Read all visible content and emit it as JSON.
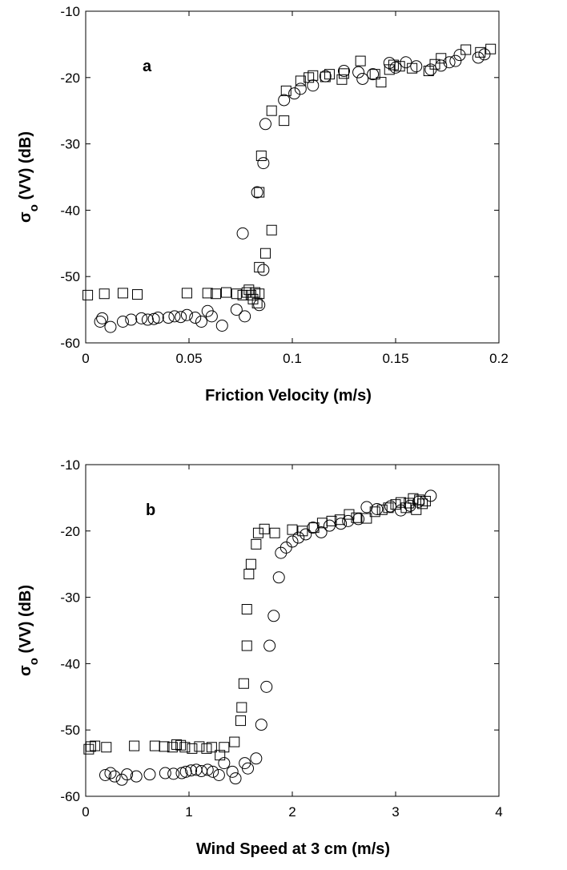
{
  "chart_data": [
    {
      "type": "scatter",
      "panel_label": "a",
      "xlabel": "Friction Velocity (m/s)",
      "ylabel": {
        "main": "σ",
        "sub": "o",
        "rest": " (VV)  (dB)"
      },
      "xlim": [
        0,
        0.2
      ],
      "ylim": [
        -60,
        -10
      ],
      "xticks": [
        "0",
        "0.05",
        "0.1",
        "0.15",
        "0.2"
      ],
      "yticks": [
        "-60",
        "-50",
        "-40",
        "-30",
        "-20",
        "-10"
      ],
      "grid": false,
      "series": [
        {
          "marker": "square",
          "points": [
            [
              0.001,
              -52.8
            ],
            [
              0.009,
              -52.6
            ],
            [
              0.018,
              -52.5
            ],
            [
              0.025,
              -52.7
            ],
            [
              0.049,
              -52.5
            ],
            [
              0.059,
              -52.5
            ],
            [
              0.063,
              -52.6
            ],
            [
              0.068,
              -52.4
            ],
            [
              0.073,
              -52.6
            ],
            [
              0.076,
              -52.8
            ],
            [
              0.078,
              -52.4
            ],
            [
              0.079,
              -52.0
            ],
            [
              0.08,
              -52.8
            ],
            [
              0.081,
              -53.4
            ],
            [
              0.082,
              -52.4
            ],
            [
              0.083,
              -54.0
            ],
            [
              0.084,
              -52.6
            ],
            [
              0.084,
              -48.6
            ],
            [
              0.084,
              -37.3
            ],
            [
              0.085,
              -31.8
            ],
            [
              0.087,
              -46.5
            ],
            [
              0.09,
              -43.0
            ],
            [
              0.09,
              -25.0
            ],
            [
              0.096,
              -26.5
            ],
            [
              0.097,
              -22.0
            ],
            [
              0.104,
              -20.5
            ],
            [
              0.108,
              -20.0
            ],
            [
              0.11,
              -19.7
            ],
            [
              0.116,
              -19.9
            ],
            [
              0.118,
              -19.5
            ],
            [
              0.124,
              -20.3
            ],
            [
              0.125,
              -19.4
            ],
            [
              0.133,
              -17.5
            ],
            [
              0.14,
              -19.5
            ],
            [
              0.143,
              -20.7
            ],
            [
              0.147,
              -18.8
            ],
            [
              0.149,
              -18.1
            ],
            [
              0.152,
              -18.3
            ],
            [
              0.158,
              -18.6
            ],
            [
              0.166,
              -19.0
            ],
            [
              0.169,
              -18.0
            ],
            [
              0.172,
              -17.1
            ],
            [
              0.184,
              -15.8
            ],
            [
              0.191,
              -16.2
            ],
            [
              0.196,
              -15.7
            ]
          ]
        },
        {
          "marker": "circle",
          "points": [
            [
              0.007,
              -56.8
            ],
            [
              0.008,
              -56.3
            ],
            [
              0.012,
              -57.6
            ],
            [
              0.018,
              -56.8
            ],
            [
              0.022,
              -56.5
            ],
            [
              0.027,
              -56.3
            ],
            [
              0.03,
              -56.5
            ],
            [
              0.033,
              -56.4
            ],
            [
              0.035,
              -56.2
            ],
            [
              0.04,
              -56.2
            ],
            [
              0.043,
              -56.0
            ],
            [
              0.046,
              -56.1
            ],
            [
              0.049,
              -55.8
            ],
            [
              0.053,
              -56.2
            ],
            [
              0.056,
              -56.8
            ],
            [
              0.059,
              -55.2
            ],
            [
              0.061,
              -56.0
            ],
            [
              0.066,
              -57.4
            ],
            [
              0.073,
              -55.0
            ],
            [
              0.077,
              -56.0
            ],
            [
              0.076,
              -43.5
            ],
            [
              0.084,
              -54.3
            ],
            [
              0.083,
              -37.3
            ],
            [
              0.086,
              -49.0
            ],
            [
              0.086,
              -32.9
            ],
            [
              0.087,
              -27.0
            ],
            [
              0.096,
              -23.4
            ],
            [
              0.101,
              -22.4
            ],
            [
              0.104,
              -21.7
            ],
            [
              0.11,
              -21.2
            ],
            [
              0.116,
              -19.8
            ],
            [
              0.125,
              -19.0
            ],
            [
              0.132,
              -19.2
            ],
            [
              0.134,
              -20.2
            ],
            [
              0.139,
              -19.5
            ],
            [
              0.147,
              -17.8
            ],
            [
              0.15,
              -18.5
            ],
            [
              0.155,
              -17.7
            ],
            [
              0.16,
              -18.3
            ],
            [
              0.167,
              -18.8
            ],
            [
              0.172,
              -18.2
            ],
            [
              0.176,
              -17.7
            ],
            [
              0.179,
              -17.5
            ],
            [
              0.181,
              -16.6
            ],
            [
              0.19,
              -17.0
            ],
            [
              0.193,
              -16.5
            ]
          ]
        }
      ]
    },
    {
      "type": "scatter",
      "panel_label": "b",
      "xlabel": "Wind Speed at 3 cm (m/s)",
      "ylabel": {
        "main": "σ",
        "sub": "o",
        "rest": " (VV)  (dB)"
      },
      "xlim": [
        0,
        4
      ],
      "ylim": [
        -60,
        -10
      ],
      "xticks": [
        "0",
        "1",
        "2",
        "3",
        "4"
      ],
      "yticks": [
        "-60",
        "-50",
        "-40",
        "-30",
        "-20",
        "-10"
      ],
      "grid": false,
      "series": [
        {
          "marker": "square",
          "points": [
            [
              0.03,
              -52.9
            ],
            [
              0.05,
              -52.5
            ],
            [
              0.09,
              -52.4
            ],
            [
              0.2,
              -52.6
            ],
            [
              0.47,
              -52.4
            ],
            [
              0.67,
              -52.4
            ],
            [
              0.76,
              -52.5
            ],
            [
              0.84,
              -52.6
            ],
            [
              0.88,
              -52.2
            ],
            [
              0.92,
              -52.3
            ],
            [
              0.96,
              -52.6
            ],
            [
              1.03,
              -52.8
            ],
            [
              1.1,
              -52.5
            ],
            [
              1.17,
              -52.8
            ],
            [
              1.22,
              -52.6
            ],
            [
              1.3,
              -53.8
            ],
            [
              1.34,
              -52.6
            ],
            [
              1.44,
              -51.8
            ],
            [
              1.5,
              -48.6
            ],
            [
              1.51,
              -46.6
            ],
            [
              1.53,
              -43.0
            ],
            [
              1.56,
              -37.3
            ],
            [
              1.56,
              -31.8
            ],
            [
              1.58,
              -26.5
            ],
            [
              1.6,
              -25.0
            ],
            [
              1.65,
              -22.0
            ],
            [
              1.67,
              -20.3
            ],
            [
              1.73,
              -19.7
            ],
            [
              1.83,
              -20.3
            ],
            [
              2.0,
              -19.8
            ],
            [
              2.1,
              -20.0
            ],
            [
              2.21,
              -19.5
            ],
            [
              2.29,
              -18.8
            ],
            [
              2.38,
              -18.5
            ],
            [
              2.46,
              -18.3
            ],
            [
              2.55,
              -17.5
            ],
            [
              2.62,
              -18.0
            ],
            [
              2.72,
              -18.1
            ],
            [
              2.8,
              -17.1
            ],
            [
              2.87,
              -16.8
            ],
            [
              2.93,
              -16.5
            ],
            [
              3.0,
              -16.0
            ],
            [
              3.05,
              -15.7
            ],
            [
              3.1,
              -16.5
            ],
            [
              3.13,
              -15.8
            ],
            [
              3.17,
              -15.1
            ],
            [
              3.2,
              -16.8
            ],
            [
              3.23,
              -15.3
            ],
            [
              3.26,
              -15.9
            ],
            [
              3.29,
              -15.5
            ]
          ]
        },
        {
          "marker": "circle",
          "points": [
            [
              0.19,
              -56.8
            ],
            [
              0.24,
              -56.5
            ],
            [
              0.28,
              -57.0
            ],
            [
              0.35,
              -57.5
            ],
            [
              0.4,
              -56.7
            ],
            [
              0.49,
              -57.0
            ],
            [
              0.62,
              -56.7
            ],
            [
              0.77,
              -56.5
            ],
            [
              0.85,
              -56.6
            ],
            [
              0.93,
              -56.5
            ],
            [
              0.97,
              -56.3
            ],
            [
              1.02,
              -56.1
            ],
            [
              1.07,
              -56.0
            ],
            [
              1.12,
              -56.2
            ],
            [
              1.18,
              -56.0
            ],
            [
              1.23,
              -56.3
            ],
            [
              1.29,
              -56.8
            ],
            [
              1.34,
              -55.0
            ],
            [
              1.42,
              -56.3
            ],
            [
              1.45,
              -57.3
            ],
            [
              1.54,
              -55.0
            ],
            [
              1.57,
              -55.8
            ],
            [
              1.65,
              -54.3
            ],
            [
              1.7,
              -49.2
            ],
            [
              1.75,
              -43.5
            ],
            [
              1.78,
              -37.3
            ],
            [
              1.82,
              -32.8
            ],
            [
              1.87,
              -27.0
            ],
            [
              1.89,
              -23.3
            ],
            [
              1.94,
              -22.5
            ],
            [
              2.0,
              -21.6
            ],
            [
              2.06,
              -21.0
            ],
            [
              2.13,
              -20.5
            ],
            [
              2.2,
              -19.5
            ],
            [
              2.28,
              -20.2
            ],
            [
              2.36,
              -19.2
            ],
            [
              2.47,
              -18.9
            ],
            [
              2.54,
              -18.5
            ],
            [
              2.64,
              -18.2
            ],
            [
              2.72,
              -16.4
            ],
            [
              2.82,
              -16.7
            ],
            [
              2.95,
              -16.3
            ],
            [
              3.05,
              -16.9
            ],
            [
              3.14,
              -16.2
            ],
            [
              3.22,
              -15.6
            ],
            [
              3.34,
              -14.7
            ]
          ]
        }
      ]
    }
  ]
}
